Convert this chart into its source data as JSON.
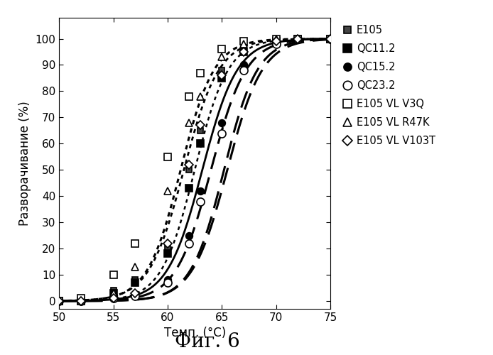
{
  "xlabel": "Темп. (°C)",
  "ylabel": "Разворачивание (%)",
  "fig_label": "Фиг. 6",
  "xlim": [
    50,
    75
  ],
  "ylim": [
    -3,
    108
  ],
  "xticks": [
    50,
    55,
    60,
    65,
    70,
    75
  ],
  "yticks": [
    0,
    10,
    20,
    30,
    40,
    50,
    60,
    70,
    80,
    90,
    100
  ],
  "series": [
    {
      "name": "E105",
      "midpoint": 63.2,
      "slope": 0.62,
      "line_dash": [],
      "line_width": 2.0,
      "marker": "s",
      "marker_size": 6,
      "color": "#000000",
      "mfc": "#444444"
    },
    {
      "name": "QC11.2",
      "midpoint": 64.0,
      "slope": 0.62,
      "line_dash": [
        8,
        4
      ],
      "line_width": 2.2,
      "marker": "s",
      "marker_size": 7,
      "color": "#000000",
      "mfc": "#000000"
    },
    {
      "name": "QC15.2",
      "midpoint": 65.2,
      "slope": 0.65,
      "line_dash": [
        8,
        4
      ],
      "line_width": 2.2,
      "marker": "o",
      "marker_size": 7,
      "color": "#000000",
      "mfc": "#000000"
    },
    {
      "name": "QC23.2",
      "midpoint": 65.5,
      "slope": 0.62,
      "line_dash": [
        8,
        4
      ],
      "line_width": 2.2,
      "marker": "o",
      "marker_size": 8,
      "color": "#000000",
      "mfc": "#ffffff"
    },
    {
      "name": "E105 VL V3Q",
      "midpoint": 61.2,
      "slope": 0.65,
      "line_dash": [
        2,
        2
      ],
      "line_width": 2.2,
      "marker": "s",
      "marker_size": 7,
      "color": "#000000",
      "mfc": "#ffffff"
    },
    {
      "name": "E105 VL R47K",
      "midpoint": 61.5,
      "slope": 0.62,
      "line_dash": [
        2,
        2
      ],
      "line_width": 2.0,
      "marker": "^",
      "marker_size": 7,
      "color": "#000000",
      "mfc": "#ffffff"
    },
    {
      "name": "E105 VL V103T",
      "midpoint": 62.5,
      "slope": 0.65,
      "line_dash": [
        2,
        2
      ],
      "line_width": 1.8,
      "marker": "D",
      "marker_size": 6,
      "color": "#000000",
      "mfc": "#ffffff"
    }
  ]
}
